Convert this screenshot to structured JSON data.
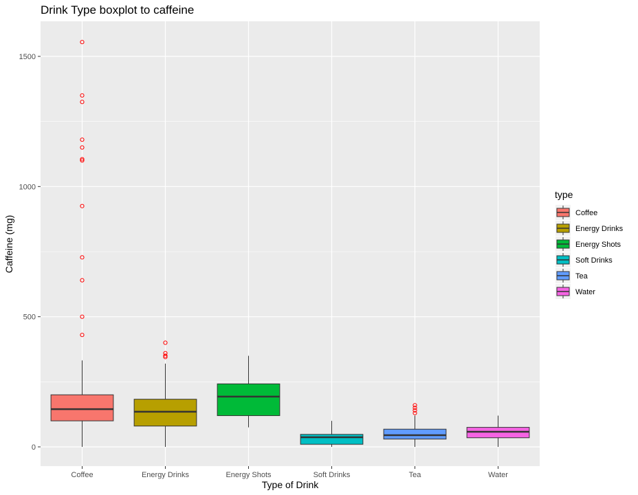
{
  "chart_data": {
    "type": "boxplot",
    "title": "Drink Type boxplot to caffeine",
    "xlabel": "Type of Drink",
    "ylabel": "Caffeine (mg)",
    "ylim": [
      -75,
      1625
    ],
    "yticks": [
      0,
      500,
      1000,
      1500
    ],
    "grid": true,
    "legend": {
      "title": "type",
      "position": "right"
    },
    "categories": [
      "Coffee",
      "Energy Drinks",
      "Energy Shots",
      "Soft Drinks",
      "Tea",
      "Water"
    ],
    "series": [
      {
        "name": "Coffee",
        "color": "#F8766D",
        "whisker_low": 0,
        "q1": 100,
        "median": 145,
        "q3": 200,
        "whisker_high": 332,
        "outliers": [
          430,
          500,
          640,
          728,
          925,
          1100,
          1105,
          1150,
          1180,
          1325,
          1350,
          1555
        ]
      },
      {
        "name": "Energy Drinks",
        "color": "#B79F00",
        "whisker_low": 0,
        "q1": 80,
        "median": 135,
        "q3": 183,
        "whisker_high": 320,
        "outliers": [
          345,
          350,
          360,
          400
        ]
      },
      {
        "name": "Energy Shots",
        "color": "#00BA38",
        "whisker_low": 75,
        "q1": 120,
        "median": 193,
        "q3": 242,
        "whisker_high": 350,
        "outliers": []
      },
      {
        "name": "Soft Drinks",
        "color": "#00BFC4",
        "whisker_low": 0,
        "q1": 10,
        "median": 37,
        "q3": 48,
        "whisker_high": 100,
        "outliers": []
      },
      {
        "name": "Tea",
        "color": "#619CFF",
        "whisker_low": 0,
        "q1": 30,
        "median": 45,
        "q3": 68,
        "whisker_high": 120,
        "outliers": [
          130,
          140,
          150,
          160
        ]
      },
      {
        "name": "Water",
        "color": "#F564E3",
        "whisker_low": 0,
        "q1": 35,
        "median": 58,
        "q3": 75,
        "whisker_high": 120,
        "outliers": []
      }
    ]
  }
}
